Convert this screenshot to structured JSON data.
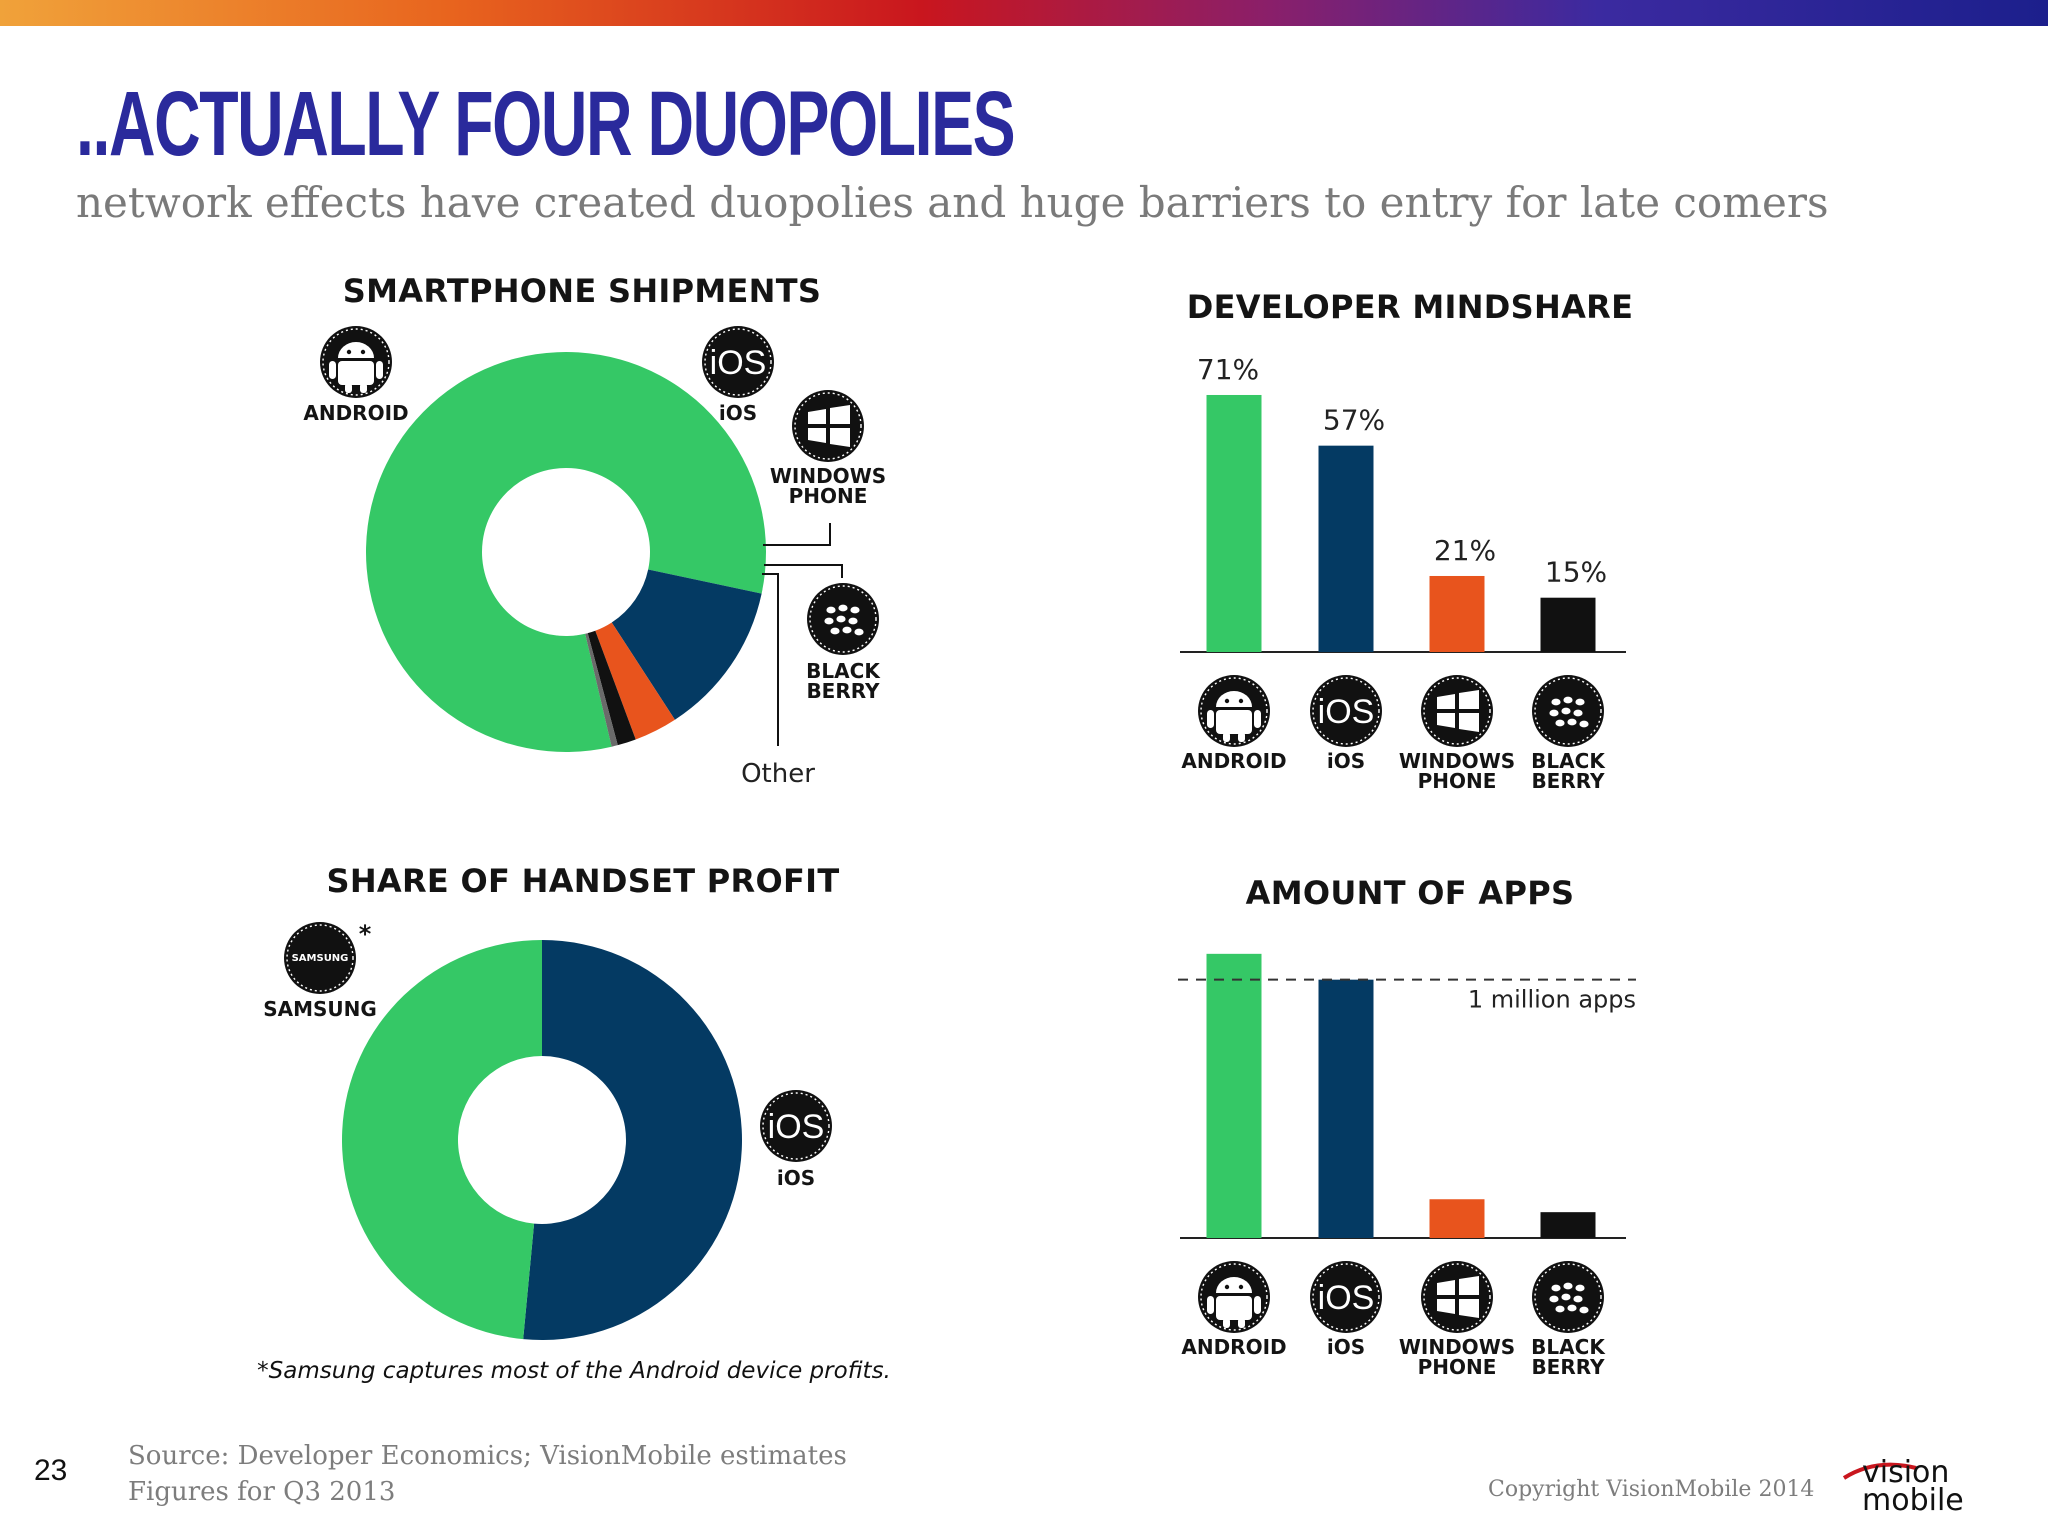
{
  "slide": {
    "title": "..Actually four duopolies",
    "subtitle": "network effects have created duopolies and huge barriers to entry for late comers",
    "page_number": "23",
    "source_line1": "Source: Developer Economics; VisionMobile estimates",
    "source_line2": "Figures for Q3 2013",
    "copyright": "Copyright VisionMobile 2014",
    "logo_line1": "vision",
    "logo_line2": "mobile"
  },
  "colors": {
    "android": "#35c866",
    "ios": "#043a63",
    "windows": "#e8541d",
    "blackberry": "#111111",
    "other": "#6a6a6a",
    "title": "#2a2a9c"
  },
  "icons": {
    "android": "android-icon",
    "ios": "ios-icon",
    "windows": "windows-icon",
    "blackberry": "blackberry-icon",
    "samsung": "samsung-icon"
  },
  "chart_data": [
    {
      "type": "pie",
      "title": "SMARTPHONE SHIPMENTS",
      "donut": true,
      "slices": [
        {
          "label": "ANDROID",
          "value": 82
        },
        {
          "label": "iOS",
          "value": 12.5
        },
        {
          "label": "WINDOWS PHONE",
          "value": 3.5
        },
        {
          "label": "BLACK BERRY",
          "value": 1.5
        },
        {
          "label": "Other",
          "value": 0.5
        }
      ],
      "label_texts": {
        "android": "ANDROID",
        "ios": "iOS",
        "ios_badge": "iOS",
        "windows_line1": "WINDOWS",
        "windows_line2": "PHONE",
        "blackberry_line1": "BLACK",
        "blackberry_line2": "BERRY",
        "other": "Other"
      }
    },
    {
      "type": "bar",
      "title": "DEVELOPER MINDSHARE",
      "categories": [
        "ANDROID",
        "iOS",
        "WINDOWS PHONE",
        "BLACK BERRY"
      ],
      "values": [
        71,
        57,
        21,
        15
      ],
      "value_labels": [
        "71%",
        "57%",
        "21%",
        "15%"
      ],
      "ylim": [
        0,
        100
      ]
    },
    {
      "type": "pie",
      "title": "SHARE OF HANDSET PROFIT",
      "donut": true,
      "slices": [
        {
          "label": "iOS",
          "value": 51.5
        },
        {
          "label": "SAMSUNG",
          "value": 48.5
        }
      ],
      "label_texts": {
        "samsung": "SAMSUNG",
        "samsung_badge": "SAMSUNG",
        "asterisk": "*",
        "ios": "iOS",
        "ios_badge": "iOS"
      },
      "footnote": "*Samsung captures most of the Android device profits."
    },
    {
      "type": "bar",
      "title": "AMOUNT OF APPS",
      "categories": [
        "ANDROID",
        "iOS",
        "WINDOWS PHONE",
        "BLACK BERRY"
      ],
      "values": [
        1.1,
        1.0,
        0.15,
        0.1
      ],
      "reference_line": {
        "value": 1.0,
        "label": "1 million apps"
      },
      "ylim": [
        0,
        1.2
      ]
    }
  ]
}
